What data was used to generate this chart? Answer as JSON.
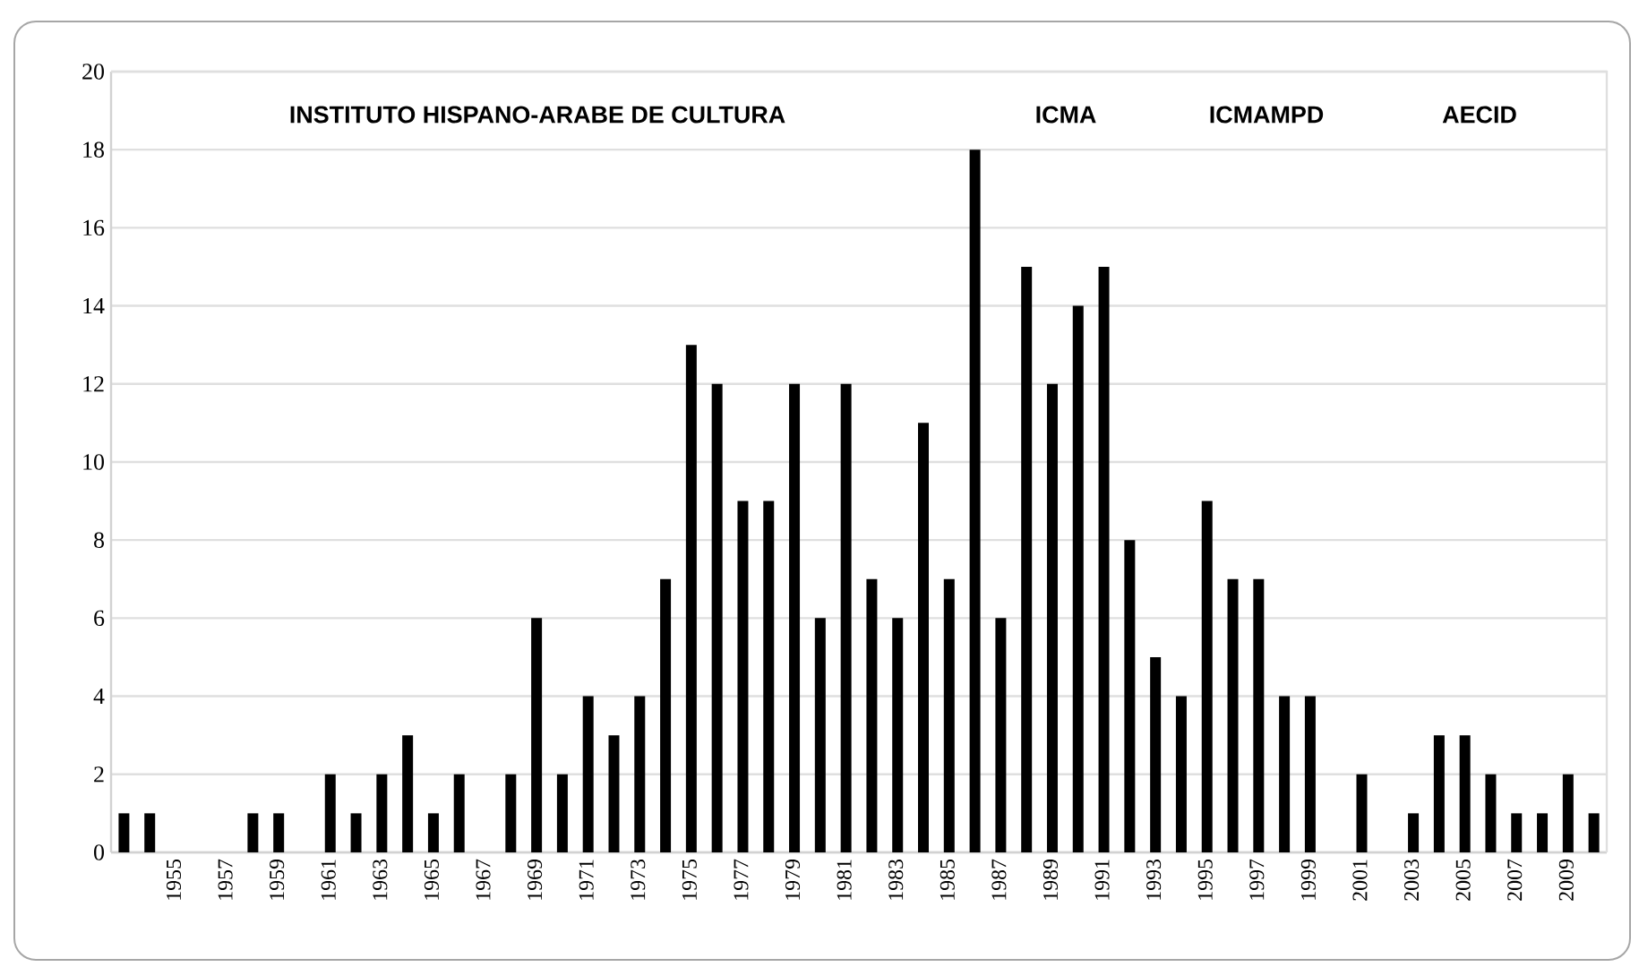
{
  "chart_data": {
    "type": "bar",
    "categories": [
      null,
      null,
      "1955",
      null,
      "1957",
      null,
      "1959",
      null,
      "1961",
      null,
      "1963",
      null,
      "1965",
      null,
      "1967",
      null,
      "1969",
      null,
      "1971",
      null,
      "1973",
      null,
      "1975",
      null,
      "1977",
      null,
      "1979",
      null,
      "1981",
      null,
      "1983",
      null,
      "1985",
      null,
      "1987",
      null,
      "1989",
      null,
      "1991",
      null,
      "1993",
      null,
      "1995",
      null,
      "1997",
      null,
      "1999",
      null,
      "2001",
      null,
      "2003",
      null,
      "2005",
      null,
      "2007",
      null,
      "2009",
      null
    ],
    "values": [
      1,
      1,
      0,
      0,
      0,
      1,
      1,
      0,
      2,
      1,
      2,
      3,
      1,
      2,
      0,
      2,
      6,
      2,
      4,
      3,
      4,
      7,
      13,
      12,
      9,
      9,
      12,
      6,
      12,
      7,
      6,
      11,
      7,
      18,
      6,
      15,
      12,
      14,
      15,
      8,
      5,
      4,
      9,
      7,
      7,
      4,
      4,
      0,
      2,
      0,
      1,
      3,
      3,
      2,
      1,
      1,
      2,
      1
    ],
    "color": "#000000",
    "ylim": [
      0,
      20
    ],
    "yticks": [
      0,
      2,
      4,
      6,
      8,
      10,
      12,
      14,
      16,
      18,
      20
    ],
    "grid": "y",
    "annotations": [
      "INSTITUTO HISPANO-ARABE DE CULTURA",
      "ICMA",
      "ICMAMPD",
      "AECID"
    ]
  }
}
